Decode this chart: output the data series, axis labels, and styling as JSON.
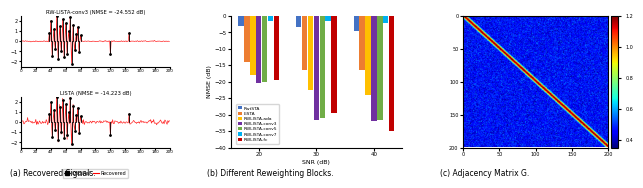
{
  "fig_width": 6.4,
  "fig_height": 1.88,
  "dpi": 100,
  "signal_n": 200,
  "top_title": "RW-LISTA-conv3 (NMSE = -24.552 dB)",
  "bottom_title": "LISTA (NMSE = -14.223 dB)",
  "bar_snr": [
    20,
    30,
    40
  ],
  "bar_groups": [
    "RwtSTA",
    "LISTA",
    "RWLISTA-ada",
    "RWLISTA-conv3",
    "RWLISTA-conv5",
    "RWLISTA-conv7",
    "RWLISTA-fc"
  ],
  "bar_colors": [
    "#4472C4",
    "#ED7D31",
    "#FFC000",
    "#7030A0",
    "#70AD47",
    "#00B0F0",
    "#C00000"
  ],
  "nmse_data": [
    [
      -3.0,
      -3.5,
      -4.5
    ],
    [
      -14.0,
      -16.5,
      -16.5
    ],
    [
      -18.0,
      -22.5,
      -24.0
    ],
    [
      -20.5,
      -31.5,
      -32.0
    ],
    [
      -20.0,
      -31.0,
      -31.5
    ],
    [
      -1.5,
      -1.5,
      -2.0
    ],
    [
      -19.5,
      -29.5,
      -35.0
    ]
  ],
  "bar_ylabel": "NMSE (dB)",
  "bar_xlabel": "SNR (dB)",
  "bar_ylim": [
    -40,
    0
  ],
  "matrix_size": 200,
  "colormap": "jet",
  "colorbar_ticks": [
    0.4,
    0.6,
    0.8,
    1.0,
    1.2
  ],
  "caption_a": "(a) Recovered Signals.",
  "caption_b": "(b) Different Reweighting Blocks.",
  "caption_c": "(c) Adjacency Matrix G."
}
